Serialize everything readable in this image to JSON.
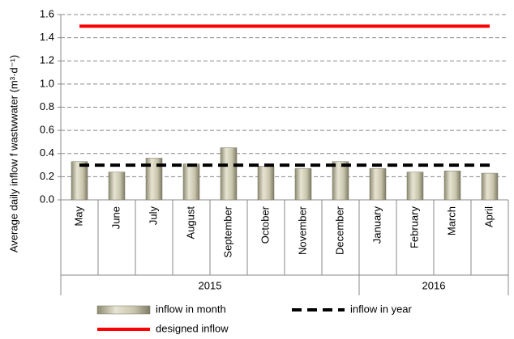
{
  "chart_data": {
    "type": "bar",
    "y_label": "Average daily inflow f wastwwater (m³·d⁻¹)",
    "categories": [
      "May",
      "June",
      "July",
      "August",
      "September",
      "October",
      "November",
      "December",
      "January",
      "February",
      "March",
      "April"
    ],
    "groups": [
      {
        "name": "2015",
        "count": 8
      },
      {
        "name": "2016",
        "count": 4
      }
    ],
    "series": [
      {
        "name": "inflow in month",
        "type": "bar",
        "color": "#c9c6ad",
        "values": [
          0.33,
          0.24,
          0.36,
          0.31,
          0.45,
          0.29,
          0.27,
          0.33,
          0.27,
          0.24,
          0.25,
          0.23
        ]
      },
      {
        "name": "inflow in year",
        "type": "dashed-line",
        "color": "#000000",
        "values": [
          0.3,
          0.3,
          0.3,
          0.3,
          0.3,
          0.3,
          0.3,
          0.3,
          0.3,
          0.3,
          0.3,
          0.3
        ]
      },
      {
        "name": "designed inflow",
        "type": "line",
        "color": "#ff0000",
        "values": [
          1.5,
          1.5,
          1.5,
          1.5,
          1.5,
          1.5,
          1.5,
          1.5,
          1.5,
          1.5,
          1.5,
          1.5
        ]
      }
    ],
    "ylim": [
      0,
      1.6
    ],
    "yticks": [
      {
        "value": 0,
        "label": "0.0"
      },
      {
        "value": 0.2,
        "label": "0.2"
      },
      {
        "value": 0.4,
        "label": "0.4"
      },
      {
        "value": 0.6,
        "label": "0.6"
      },
      {
        "value": 0.8,
        "label": "0.8"
      },
      {
        "value": 1,
        "label": "1.0"
      },
      {
        "value": 1.2,
        "label": "1.2"
      },
      {
        "value": 1.4,
        "label": "1.4"
      },
      {
        "value": 1.6,
        "label": "1.6"
      }
    ],
    "grid": true
  }
}
